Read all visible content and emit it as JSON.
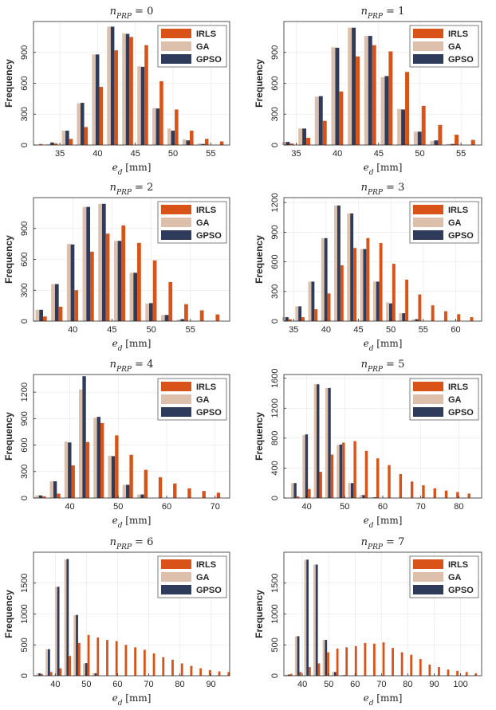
{
  "colors": {
    "IRLS": "#d95319",
    "GA": "#dcc0ac",
    "GPSO": "#2e3b5b"
  },
  "chart_data": [
    {
      "type": "bar",
      "title": "n_PRP = 0",
      "title_main": "n",
      "title_sub": "PRP",
      "title_rest": " = 0",
      "xlabel_main": "e",
      "xlabel_sub": "d",
      "xlabel_unit": " [mm]",
      "ylabel": "Frequency",
      "xlim": [
        31.5,
        57.5
      ],
      "ylim": [
        0,
        1200
      ],
      "xticks": [
        35,
        40,
        45,
        50,
        55
      ],
      "yticks": [
        0,
        300,
        600,
        900
      ],
      "legend": [
        "IRLS",
        "GA",
        "GPSO"
      ],
      "series": [
        {
          "name": "IRLS",
          "x": [
            32,
            34,
            36,
            38,
            40,
            42,
            44,
            46,
            48,
            50,
            52,
            54,
            56
          ],
          "values": [
            10,
            15,
            60,
            175,
            565,
            920,
            1050,
            970,
            620,
            345,
            140,
            60,
            35
          ]
        },
        {
          "name": "GA",
          "x": [
            32,
            34,
            36,
            38,
            40,
            42,
            44,
            46,
            48,
            50,
            52,
            54,
            56
          ],
          "values": [
            0,
            10,
            140,
            405,
            880,
            1150,
            1085,
            765,
            360,
            160,
            55,
            15,
            0
          ]
        },
        {
          "name": "GPSO",
          "x": [
            32,
            34,
            36,
            38,
            40,
            42,
            44,
            46,
            48,
            50,
            52,
            54,
            56
          ],
          "values": [
            0,
            25,
            140,
            410,
            880,
            1150,
            1080,
            760,
            355,
            140,
            45,
            10,
            0
          ]
        }
      ]
    },
    {
      "type": "bar",
      "title": "n_PRP = 1",
      "title_main": "n",
      "title_sub": "PRP",
      "title_rest": " = 1",
      "xlabel_main": "e",
      "xlabel_sub": "d",
      "xlabel_unit": " [mm]",
      "ylabel": "Frequency",
      "xlim": [
        33.5,
        57.5
      ],
      "ylim": [
        0,
        1200
      ],
      "xticks": [
        35,
        40,
        45,
        50,
        55
      ],
      "yticks": [
        0,
        300,
        600,
        900
      ],
      "legend": [
        "IRLS",
        "GA",
        "GPSO"
      ],
      "series": [
        {
          "name": "IRLS",
          "x": [
            34,
            36,
            38,
            40,
            42,
            44,
            46,
            48,
            50,
            52,
            54,
            56
          ],
          "values": [
            15,
            70,
            235,
            520,
            860,
            970,
            910,
            710,
            380,
            195,
            100,
            50
          ]
        },
        {
          "name": "GA",
          "x": [
            34,
            36,
            38,
            40,
            42,
            44,
            46,
            48,
            50,
            52,
            54,
            56
          ],
          "values": [
            30,
            160,
            470,
            950,
            1140,
            1060,
            660,
            350,
            130,
            40,
            10,
            0
          ]
        },
        {
          "name": "GPSO",
          "x": [
            34,
            36,
            38,
            40,
            42,
            44,
            46,
            48,
            50,
            52,
            54,
            56
          ],
          "values": [
            30,
            160,
            475,
            945,
            1140,
            1060,
            670,
            345,
            130,
            45,
            10,
            0
          ]
        }
      ]
    },
    {
      "type": "bar",
      "title": "n_PRP = 2",
      "title_main": "n",
      "title_sub": "PRP",
      "title_rest": " = 2",
      "xlabel_main": "e",
      "xlabel_sub": "d",
      "xlabel_unit": " [mm]",
      "ylabel": "Frequency",
      "xlim": [
        35,
        60
      ],
      "ylim": [
        0,
        1200
      ],
      "xticks": [
        40,
        45,
        50,
        55
      ],
      "yticks": [
        0,
        300,
        600,
        900
      ],
      "legend": [
        "IRLS",
        "GA",
        "GPSO"
      ],
      "series": [
        {
          "name": "IRLS",
          "x": [
            36,
            38,
            40,
            42,
            44,
            46,
            48,
            50,
            52,
            54,
            56,
            58
          ],
          "values": [
            45,
            140,
            300,
            675,
            850,
            930,
            760,
            590,
            380,
            165,
            105,
            65
          ]
        },
        {
          "name": "GA",
          "x": [
            36,
            38,
            40,
            42,
            44,
            46,
            48,
            50,
            52,
            54,
            56,
            58
          ],
          "values": [
            110,
            360,
            750,
            1110,
            1140,
            780,
            470,
            170,
            60,
            15,
            0,
            0
          ]
        },
        {
          "name": "GPSO",
          "x": [
            36,
            38,
            40,
            42,
            44,
            46,
            48,
            50,
            52,
            54,
            56,
            58
          ],
          "values": [
            110,
            360,
            745,
            1110,
            1140,
            780,
            470,
            175,
            60,
            20,
            0,
            0
          ]
        }
      ]
    },
    {
      "type": "bar",
      "title": "n_PRP = 3",
      "title_main": "n",
      "title_sub": "PRP",
      "title_rest": " = 3",
      "xlabel_main": "e",
      "xlabel_sub": "d",
      "xlabel_unit": " [mm]",
      "ylabel": "Frequency",
      "xlim": [
        33.5,
        64
      ],
      "ylim": [
        0,
        1250
      ],
      "xticks": [
        35,
        40,
        45,
        50,
        55,
        60
      ],
      "yticks": [
        0,
        300,
        600,
        900,
        1200
      ],
      "legend": [
        "IRLS",
        "GA",
        "GPSO"
      ],
      "series": [
        {
          "name": "IRLS",
          "x": [
            34,
            36,
            38,
            40,
            42,
            44,
            46,
            48,
            50,
            52,
            54,
            56,
            58,
            60,
            62
          ],
          "values": [
            20,
            40,
            120,
            280,
            565,
            740,
            840,
            790,
            580,
            420,
            270,
            160,
            100,
            70,
            40
          ]
        },
        {
          "name": "GA",
          "x": [
            34,
            36,
            38,
            40,
            42,
            44,
            46,
            48,
            50,
            52,
            54,
            56,
            58,
            60,
            62
          ],
          "values": [
            40,
            150,
            400,
            840,
            1170,
            1090,
            730,
            400,
            190,
            80,
            20,
            0,
            0,
            0,
            0
          ]
        },
        {
          "name": "GPSO",
          "x": [
            34,
            36,
            38,
            40,
            42,
            44,
            46,
            48,
            50,
            52,
            54,
            56,
            58,
            60,
            62
          ],
          "values": [
            40,
            150,
            400,
            840,
            1170,
            1090,
            730,
            400,
            180,
            80,
            20,
            0,
            0,
            0,
            0
          ]
        }
      ]
    },
    {
      "type": "bar",
      "title": "n_PRP = 4",
      "title_main": "n",
      "title_sub": "PRP",
      "title_rest": " = 4",
      "xlabel_main": "e",
      "xlabel_sub": "d",
      "xlabel_unit": " [mm]",
      "ylabel": "Frequency",
      "xlim": [
        32.5,
        73
      ],
      "ylim": [
        0,
        1400
      ],
      "xticks": [
        40,
        50,
        60,
        70
      ],
      "yticks": [
        0,
        300,
        600,
        900,
        1200
      ],
      "legend": [
        "IRLS",
        "GA",
        "GPSO"
      ],
      "series": [
        {
          "name": "IRLS",
          "x": [
            34,
            37,
            40,
            43,
            46,
            49,
            52,
            55,
            58,
            61,
            64,
            67,
            70
          ],
          "values": [
            20,
            50,
            370,
            635,
            850,
            710,
            490,
            320,
            235,
            165,
            110,
            80,
            60
          ]
        },
        {
          "name": "GA",
          "x": [
            34,
            37,
            40,
            43,
            46,
            49,
            52,
            55,
            58,
            61,
            64,
            67,
            70
          ],
          "values": [
            30,
            190,
            640,
            1230,
            910,
            480,
            150,
            40,
            0,
            0,
            0,
            0,
            0
          ]
        },
        {
          "name": "GPSO",
          "x": [
            34,
            37,
            40,
            43,
            46,
            49,
            52,
            55,
            58,
            61,
            64,
            67,
            70
          ],
          "values": [
            30,
            190,
            630,
            1380,
            920,
            475,
            150,
            40,
            0,
            0,
            0,
            0,
            0
          ]
        }
      ]
    },
    {
      "type": "bar",
      "title": "n_PRP = 5",
      "title_main": "n",
      "title_sub": "PRP",
      "title_rest": " = 5",
      "xlabel_main": "e",
      "xlabel_sub": "d",
      "xlabel_unit": " [mm]",
      "ylabel": "Frequency",
      "xlim": [
        34,
        86
      ],
      "ylim": [
        0,
        1650
      ],
      "xticks": [
        40,
        50,
        60,
        70,
        80
      ],
      "yticks": [
        0,
        400,
        800,
        1200,
        1600
      ],
      "legend": [
        "IRLS",
        "GA",
        "GPSO"
      ],
      "series": [
        {
          "name": "IRLS",
          "x": [
            37,
            40,
            43,
            46,
            49,
            52,
            55,
            58,
            61,
            64,
            67,
            70,
            73,
            76,
            79,
            82
          ],
          "values": [
            20,
            120,
            350,
            580,
            740,
            760,
            630,
            530,
            440,
            320,
            220,
            170,
            130,
            100,
            80,
            60
          ]
        },
        {
          "name": "GA",
          "x": [
            37,
            40,
            43,
            46,
            49,
            52,
            55,
            58,
            61,
            64,
            67,
            70,
            73,
            76,
            79,
            82
          ],
          "values": [
            200,
            840,
            1520,
            1470,
            710,
            200,
            40,
            10,
            0,
            0,
            0,
            0,
            0,
            0,
            0,
            0
          ]
        },
        {
          "name": "GPSO",
          "x": [
            37,
            40,
            43,
            46,
            49,
            52,
            55,
            58,
            61,
            64,
            67,
            70,
            73,
            76,
            79,
            82
          ],
          "values": [
            200,
            850,
            1520,
            1470,
            715,
            200,
            40,
            10,
            0,
            0,
            0,
            0,
            0,
            0,
            0,
            0
          ]
        }
      ]
    },
    {
      "type": "bar",
      "title": "n_PRP = 6",
      "title_main": "n",
      "title_sub": "PRP",
      "title_rest": " = 6",
      "xlabel_main": "e",
      "xlabel_sub": "d",
      "xlabel_unit": " [mm]",
      "ylabel": "Frequency",
      "xlim": [
        33,
        96
      ],
      "ylim": [
        0,
        2000
      ],
      "xticks": [
        40,
        50,
        60,
        70,
        80,
        90
      ],
      "yticks": [
        0,
        500,
        1000,
        1500
      ],
      "legend": [
        "IRLS",
        "GA",
        "GPSO"
      ],
      "series": [
        {
          "name": "IRLS",
          "x": [
            35,
            38,
            41,
            44,
            47,
            50,
            53,
            56,
            59,
            62,
            65,
            68,
            71,
            74,
            77,
            80,
            83,
            86,
            89,
            92,
            95
          ],
          "values": [
            30,
            60,
            120,
            320,
            530,
            660,
            620,
            580,
            560,
            500,
            460,
            420,
            360,
            300,
            260,
            200,
            160,
            120,
            90,
            70,
            60
          ]
        },
        {
          "name": "GA",
          "x": [
            35,
            38,
            41,
            44,
            47,
            50,
            53,
            56,
            59,
            62,
            65,
            68,
            71,
            74,
            77,
            80,
            83,
            86,
            89,
            92,
            95
          ],
          "values": [
            40,
            430,
            1440,
            1880,
            980,
            200,
            40,
            0,
            0,
            0,
            0,
            0,
            0,
            0,
            0,
            0,
            0,
            0,
            0,
            0,
            0
          ]
        },
        {
          "name": "GPSO",
          "x": [
            35,
            38,
            41,
            44,
            47,
            50,
            53,
            56,
            59,
            62,
            65,
            68,
            71,
            74,
            77,
            80,
            83,
            86,
            89,
            92,
            95
          ],
          "values": [
            40,
            430,
            1440,
            1890,
            985,
            205,
            40,
            0,
            0,
            0,
            0,
            0,
            0,
            0,
            0,
            0,
            0,
            0,
            0,
            0,
            0
          ]
        }
      ]
    },
    {
      "type": "bar",
      "title": "n_PRP = 7",
      "title_main": "n",
      "title_sub": "PRP",
      "title_rest": " = 7",
      "xlabel_main": "e",
      "xlabel_sub": "d",
      "xlabel_unit": " [mm]",
      "ylabel": "Frequency",
      "xlim": [
        33,
        108
      ],
      "ylim": [
        0,
        2000
      ],
      "xticks": [
        40,
        50,
        60,
        70,
        80,
        90,
        100
      ],
      "yticks": [
        0,
        500,
        1000,
        1500
      ],
      "legend": [
        "IRLS",
        "GA",
        "GPSO"
      ],
      "series": [
        {
          "name": "IRLS",
          "x": [
            35,
            38.5,
            42,
            45.5,
            49,
            52.5,
            56,
            59.5,
            63,
            66.5,
            70,
            73.5,
            77,
            80.5,
            84,
            87.5,
            91,
            94.5,
            98,
            101.5,
            105
          ],
          "values": [
            30,
            60,
            140,
            200,
            380,
            440,
            460,
            480,
            530,
            520,
            540,
            450,
            380,
            340,
            270,
            180,
            140,
            100,
            80,
            60,
            40
          ]
        },
        {
          "name": "GA",
          "x": [
            35,
            38.5,
            42,
            45.5,
            49,
            52.5,
            56,
            59.5,
            63,
            66.5,
            70,
            73.5,
            77,
            80.5,
            84,
            87.5,
            91,
            94.5,
            98,
            101.5,
            105
          ],
          "values": [
            20,
            640,
            1880,
            1800,
            580,
            60,
            10,
            0,
            0,
            0,
            0,
            0,
            0,
            0,
            0,
            0,
            0,
            0,
            0,
            0,
            0
          ]
        },
        {
          "name": "GPSO",
          "x": [
            35,
            38.5,
            42,
            45.5,
            49,
            52.5,
            56,
            59.5,
            63,
            66.5,
            70,
            73.5,
            77,
            80.5,
            84,
            87.5,
            91,
            94.5,
            98,
            101.5,
            105
          ],
          "values": [
            20,
            640,
            1880,
            1800,
            580,
            60,
            10,
            0,
            0,
            0,
            0,
            0,
            0,
            0,
            0,
            0,
            0,
            0,
            0,
            0,
            0
          ]
        }
      ]
    }
  ]
}
